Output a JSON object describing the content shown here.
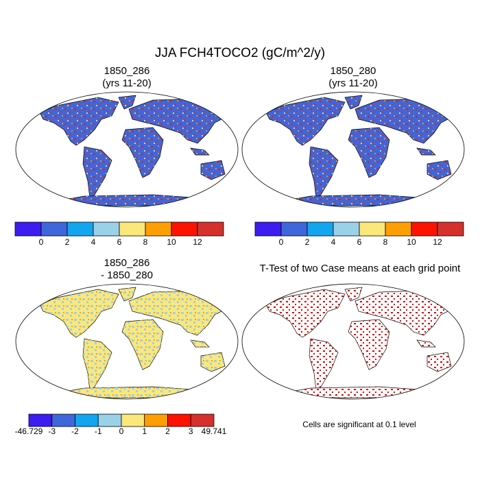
{
  "title": "JJA FCH4TOCO2 (gC/m^2/y)",
  "panels": [
    {
      "title": [
        "1850_286",
        "(yrs 11-20)"
      ],
      "colorbar": {
        "colors": [
          "#3d1cf2",
          "#3f66da",
          "#13a5f0",
          "#99d1e9",
          "#fbe77a",
          "#ff9e02",
          "#fe1200",
          "#d5302c"
        ],
        "labels": [
          0,
          2,
          4,
          6,
          8,
          10,
          12
        ]
      }
    },
    {
      "title": [
        "1850_280",
        "(yrs 11-20)"
      ],
      "colorbar": {
        "colors": [
          "#3d1cf2",
          "#3f66da",
          "#13a5f0",
          "#99d1e9",
          "#fbe77a",
          "#ff9e02",
          "#fe1200",
          "#d5302c"
        ],
        "labels": [
          0,
          2,
          4,
          6,
          8,
          10,
          12
        ]
      }
    },
    {
      "title": [
        "1850_286",
        "- 1850_280"
      ],
      "colorbar": {
        "colors": [
          "#3d1cf2",
          "#3f66da",
          "#13a5f0",
          "#99d1e9",
          "#fbe77a",
          "#ff9e02",
          "#fe1200",
          "#d5302c"
        ],
        "labels": [
          -46.729,
          -3,
          -2,
          -1,
          0,
          1,
          2,
          3,
          49.741
        ]
      }
    }
  ],
  "ttest": {
    "title": "T-Test of two Case means at each grid point",
    "note": "Cells are significant at 0.1 level"
  }
}
